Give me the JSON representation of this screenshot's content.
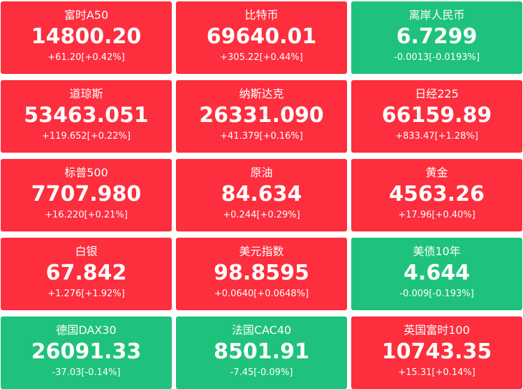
{
  "tiles": [
    {
      "name": "富时A50",
      "price": "14800.20",
      "change": "+61.20[+0.42%]",
      "color": "#fd2e3d"
    },
    {
      "name": "比特币",
      "price": "69640.01",
      "change": "+305.22[+0.44%]",
      "color": "#fd2e3d"
    },
    {
      "name": "离岸人民币",
      "price": "6.7299",
      "change": "-0.0013[-0.0193%]",
      "color": "#1fc27c"
    },
    {
      "name": "道琼斯",
      "price": "53463.051",
      "change": "+119.652[+0.22%]",
      "color": "#fd2e3d"
    },
    {
      "name": "纳斯达克",
      "price": "26331.090",
      "change": "+41.379[+0.16%]",
      "color": "#fd2e3d"
    },
    {
      "name": "日经225",
      "price": "66159.89",
      "change": "+833.47[+1.28%]",
      "color": "#fd2e3d"
    },
    {
      "name": "标普500",
      "price": "7707.980",
      "change": "+16.220[+0.21%]",
      "color": "#fd2e3d"
    },
    {
      "name": "原油",
      "price": "84.634",
      "change": "+0.244[+0.29%]",
      "color": "#fd2e3d"
    },
    {
      "name": "黄金",
      "price": "4563.26",
      "change": "+17.96[+0.40%]",
      "color": "#fd2e3d"
    },
    {
      "name": "白银",
      "price": "67.842",
      "change": "+1.276[+1.92%]",
      "color": "#fd2e3d"
    },
    {
      "name": "美元指数",
      "price": "98.8595",
      "change": "+0.0640[+0.0648%]",
      "color": "#fd2e3d"
    },
    {
      "name": "美债10年",
      "price": "4.644",
      "change": "-0.009[-0.193%]",
      "color": "#1fc27c"
    },
    {
      "name": "德国DAX30",
      "price": "26091.33",
      "change": "-37.03[-0.14%]",
      "color": "#1fc27c"
    },
    {
      "name": "法国CAC40",
      "price": "8501.91",
      "change": "-7.45[-0.09%]",
      "color": "#1fc27c"
    },
    {
      "name": "英国富时100",
      "price": "10743.35",
      "change": "+15.31[+0.14%]",
      "color": "#fd2e3d"
    }
  ]
}
